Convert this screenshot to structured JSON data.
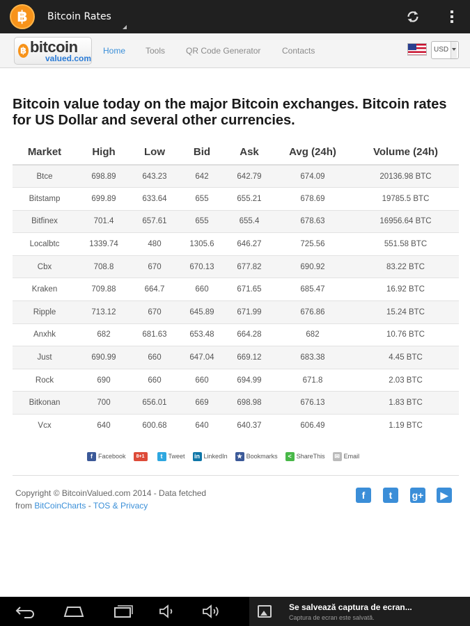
{
  "actionbar": {
    "logo_glyph": "฿",
    "title": "Bitcoin Rates",
    "icons": [
      "refresh-icon",
      "overflow-menu-icon"
    ]
  },
  "sitenav": {
    "logo_coin": "฿",
    "logo_main": "bitcoin",
    "logo_sub": "valued.com",
    "links": [
      "Home",
      "Tools",
      "QR Code Generator",
      "Contacts"
    ],
    "active_link": "Home",
    "currency": "USD",
    "flag_icon": "us-flag-icon"
  },
  "heading": "Bitcoin value today on the major Bitcoin exchanges. Bitcoin rates for US Dollar and several other currencies.",
  "table": {
    "columns": [
      "Market",
      "High",
      "Low",
      "Bid",
      "Ask",
      "Avg (24h)",
      "Volume (24h)"
    ],
    "rows": [
      [
        "Btce",
        "698.89",
        "643.23",
        "642",
        "642.79",
        "674.09",
        "20136.98 BTC"
      ],
      [
        "Bitstamp",
        "699.89",
        "633.64",
        "655",
        "655.21",
        "678.69",
        "19785.5 BTC"
      ],
      [
        "Bitfinex",
        "701.4",
        "657.61",
        "655",
        "655.4",
        "678.63",
        "16956.64 BTC"
      ],
      [
        "Localbtc",
        "1339.74",
        "480",
        "1305.6",
        "646.27",
        "725.56",
        "551.58 BTC"
      ],
      [
        "Cbx",
        "708.8",
        "670",
        "670.13",
        "677.82",
        "690.92",
        "83.22 BTC"
      ],
      [
        "Kraken",
        "709.88",
        "664.7",
        "660",
        "671.65",
        "685.47",
        "16.92 BTC"
      ],
      [
        "Ripple",
        "713.12",
        "670",
        "645.89",
        "671.99",
        "676.86",
        "15.24 BTC"
      ],
      [
        "Anxhk",
        "682",
        "681.63",
        "653.48",
        "664.28",
        "682",
        "10.76 BTC"
      ],
      [
        "Just",
        "690.99",
        "660",
        "647.04",
        "669.12",
        "683.38",
        "4.45 BTC"
      ],
      [
        "Rock",
        "690",
        "660",
        "660",
        "694.99",
        "671.8",
        "2.03 BTC"
      ],
      [
        "Bitkonan",
        "700",
        "656.01",
        "669",
        "698.98",
        "676.13",
        "1.83 BTC"
      ],
      [
        "Vcx",
        "640",
        "600.68",
        "640",
        "640.37",
        "606.49",
        "1.19 BTC"
      ]
    ]
  },
  "share": {
    "items": [
      {
        "label": "Facebook",
        "glyph": "f",
        "color": "#3b5998",
        "icon": "facebook-icon"
      },
      {
        "label": "",
        "glyph": "8+1",
        "color": "#dd4b39",
        "icon": "google-plus-one-icon"
      },
      {
        "label": "Tweet",
        "glyph": "t",
        "color": "#2ea7e0",
        "icon": "twitter-icon"
      },
      {
        "label": "LinkedIn",
        "glyph": "in",
        "color": "#0e76a8",
        "icon": "linkedin-icon"
      },
      {
        "label": "Bookmarks",
        "glyph": "★",
        "color": "#3b5998",
        "icon": "bookmarks-icon"
      },
      {
        "label": "ShareThis",
        "glyph": "<",
        "color": "#48b848",
        "icon": "sharethis-icon"
      },
      {
        "label": "Email",
        "glyph": "✉",
        "color": "#bbbbbb",
        "icon": "email-icon"
      }
    ]
  },
  "footer": {
    "copyright": "Copyright © BitcoinValued.com 2014 - Data fetched",
    "from": "from ",
    "source_link": "BitCoinCharts",
    "sep": " - ",
    "tos_link": "TOS & Privacy"
  },
  "social_icons": [
    {
      "glyph": "f",
      "color": "#3b8ed8",
      "icon": "facebook-icon"
    },
    {
      "glyph": "t",
      "color": "#3b8ed8",
      "icon": "twitter-icon"
    },
    {
      "glyph": "g+",
      "color": "#3b8ed8",
      "icon": "google-plus-icon"
    },
    {
      "glyph": "▶",
      "color": "#3b8ed8",
      "icon": "youtube-icon"
    }
  ],
  "systembar": {
    "buttons": [
      "back-icon",
      "home-icon",
      "recent-apps-icon",
      "volume-down-icon",
      "volume-up-icon"
    ],
    "notification_title": "Se salvează captura de ecran...",
    "notification_sub": "Captura de ecran este salvată."
  }
}
